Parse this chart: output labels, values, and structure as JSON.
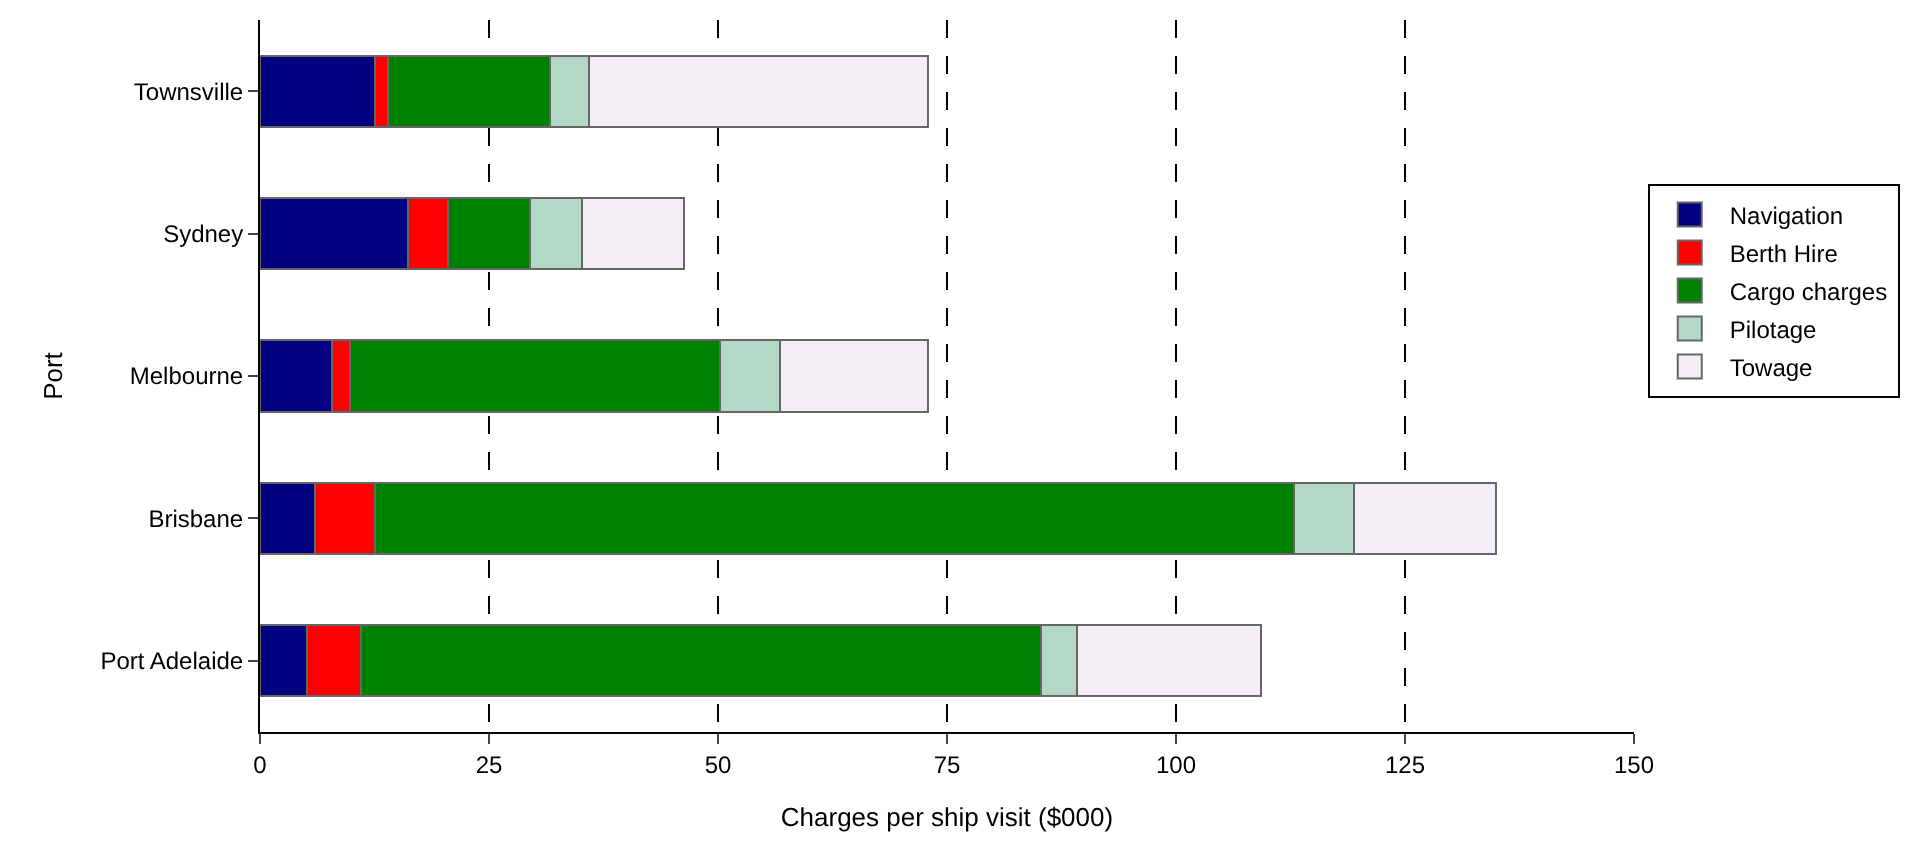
{
  "chart_data": {
    "type": "bar",
    "orientation": "horizontal",
    "stacked": true,
    "xlabel": "Charges per ship visit ($000)",
    "ylabel": "Port",
    "categories": [
      "Townsville",
      "Sydney",
      "Melbourne",
      "Brisbane",
      "Port Adelaide"
    ],
    "series": [
      {
        "name": "Navigation",
        "color": "#000080",
        "values": [
          12.5,
          16.2,
          7.9,
          6.0,
          5.1
        ]
      },
      {
        "name": "Berth Hire",
        "color": "#ff0000",
        "values": [
          1.5,
          4.3,
          1.9,
          6.5,
          5.9
        ]
      },
      {
        "name": "Cargo charges",
        "color": "#008000",
        "values": [
          17.7,
          9.0,
          40.4,
          100.4,
          74.3
        ]
      },
      {
        "name": "Pilotage",
        "color": "#b3d9c6",
        "values": [
          4.2,
          5.7,
          6.6,
          6.5,
          3.9
        ]
      },
      {
        "name": "Towage",
        "color": "#f3eef5",
        "values": [
          37.0,
          11.1,
          16.1,
          15.5,
          20.1
        ]
      }
    ],
    "xlim": [
      0,
      150
    ],
    "xticks": [
      0,
      25,
      50,
      75,
      100,
      125,
      150
    ],
    "grid": "x",
    "legend": "right"
  }
}
